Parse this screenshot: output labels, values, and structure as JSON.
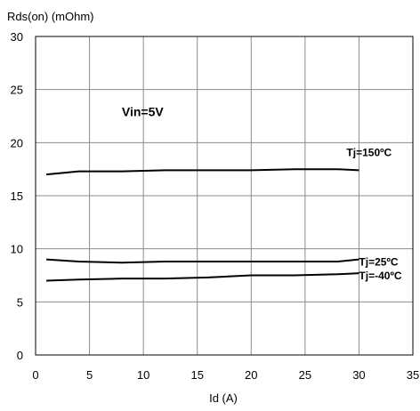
{
  "chart_data": {
    "type": "line",
    "title": "",
    "ylabel": "Rds(on) (mOhm)",
    "xlabel": "Id (A)",
    "xlim": [
      0,
      35
    ],
    "ylim": [
      0,
      30
    ],
    "xticks": [
      0,
      5,
      10,
      15,
      20,
      25,
      30,
      35
    ],
    "yticks": [
      0,
      5,
      10,
      15,
      20,
      25,
      30
    ],
    "grid": true,
    "annotations": [
      {
        "text": "Vin=5V",
        "x": 8,
        "y": 22
      }
    ],
    "series": [
      {
        "name": "Tj=150ºC",
        "x": [
          1,
          4,
          8,
          12,
          16,
          20,
          24,
          28,
          30
        ],
        "y": [
          17.0,
          17.3,
          17.3,
          17.4,
          17.4,
          17.4,
          17.5,
          17.5,
          17.4
        ]
      },
      {
        "name": "Tj=25ºC",
        "x": [
          1,
          4,
          8,
          12,
          16,
          20,
          24,
          28,
          30
        ],
        "y": [
          9.0,
          8.8,
          8.7,
          8.8,
          8.8,
          8.8,
          8.8,
          8.8,
          9.0
        ]
      },
      {
        "name": "Tj=-40ºC",
        "x": [
          1,
          4,
          8,
          12,
          16,
          20,
          24,
          28,
          30
        ],
        "y": [
          7.0,
          7.1,
          7.2,
          7.2,
          7.3,
          7.5,
          7.5,
          7.6,
          7.7
        ]
      }
    ]
  }
}
